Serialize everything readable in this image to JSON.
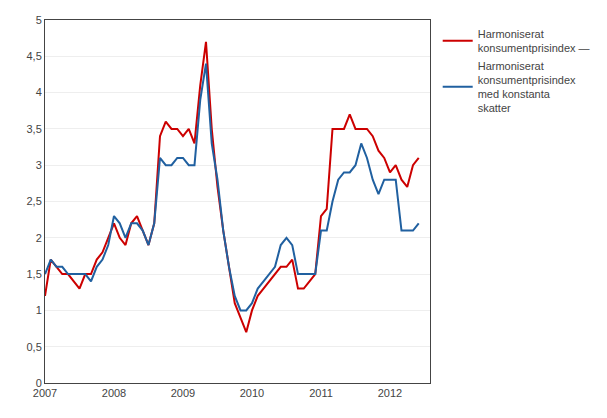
{
  "chart_data": {
    "type": "line",
    "x": [
      2007,
      2007.0833333333333,
      2007.1666666666667,
      2007.25,
      2007.3333333333333,
      2007.4166666666667,
      2007.5,
      2007.5833333333333,
      2007.6666666666667,
      2007.75,
      2007.8333333333333,
      2007.9166666666667,
      2008,
      2008.0833333333333,
      2008.1666666666667,
      2008.25,
      2008.3333333333333,
      2008.4166666666667,
      2008.5,
      2008.5833333333333,
      2008.6666666666667,
      2008.75,
      2008.8333333333333,
      2008.9166666666667,
      2009,
      2009.0833333333333,
      2009.1666666666667,
      2009.25,
      2009.3333333333333,
      2009.4166666666667,
      2009.5,
      2009.5833333333333,
      2009.6666666666667,
      2009.75,
      2009.8333333333333,
      2009.9166666666667,
      2010,
      2010.0833333333333,
      2010.1666666666667,
      2010.25,
      2010.3333333333333,
      2010.4166666666667,
      2010.5,
      2010.5833333333333,
      2010.6666666666667,
      2010.75,
      2010.8333333333333,
      2010.9166666666667,
      2011,
      2011.0833333333333,
      2011.1666666666667,
      2011.25,
      2011.3333333333333,
      2011.4166666666667,
      2011.5,
      2011.5833333333333,
      2011.6666666666667,
      2011.75,
      2011.8333333333333,
      2011.9166666666667,
      2012,
      2012.0833333333333,
      2012.1666666666667,
      2012.25,
      2012.3333333333333,
      2012.4166666666667
    ],
    "series": [
      {
        "name": "Harmoniserat\nkonsumentprisindex —",
        "color": "#cc0000",
        "values": [
          1.2,
          1.7,
          1.6,
          1.5,
          1.5,
          1.4,
          1.3,
          1.5,
          1.5,
          1.7,
          1.8,
          2.0,
          2.2,
          2.0,
          1.9,
          2.2,
          2.3,
          2.1,
          1.9,
          2.2,
          3.4,
          3.6,
          3.5,
          3.5,
          3.4,
          3.5,
          3.3,
          4.1,
          4.7,
          3.5,
          2.7,
          2.1,
          1.6,
          1.1,
          0.9,
          0.7,
          1.0,
          1.2,
          1.3,
          1.4,
          1.5,
          1.6,
          1.6,
          1.7,
          1.3,
          1.3,
          1.4,
          1.5,
          2.3,
          2.4,
          3.5,
          3.5,
          3.5,
          3.7,
          3.5,
          3.5,
          3.5,
          3.4,
          3.2,
          3.1,
          2.9,
          3.0,
          2.8,
          2.7,
          3.0,
          3.1
        ]
      },
      {
        "name": "Harmoniserat\nkonsumentprisindex\nmed konstanta\nskatter",
        "color": "#2060a0",
        "values": [
          1.5,
          1.7,
          1.6,
          1.6,
          1.5,
          1.5,
          1.5,
          1.5,
          1.4,
          1.6,
          1.7,
          1.9,
          2.3,
          2.2,
          2.0,
          2.2,
          2.2,
          2.1,
          1.9,
          2.2,
          3.1,
          3.0,
          3.0,
          3.1,
          3.1,
          3.0,
          3.0,
          3.9,
          4.4,
          3.3,
          2.8,
          2.1,
          1.6,
          1.2,
          1.0,
          1.0,
          1.1,
          1.3,
          1.4,
          1.5,
          1.6,
          1.9,
          2.0,
          1.9,
          1.5,
          1.5,
          1.5,
          1.5,
          2.1,
          2.1,
          2.5,
          2.8,
          2.9,
          2.9,
          3.0,
          3.3,
          3.1,
          2.8,
          2.6,
          2.8,
          2.8,
          2.8,
          2.1,
          2.1,
          2.1,
          2.2
        ]
      }
    ],
    "xlim": [
      2007,
      2012.58
    ],
    "xticks": [
      2007,
      2008,
      2009,
      2010,
      2011,
      2012
    ],
    "ylim": [
      0,
      5
    ],
    "yticks": [
      0,
      {
        "value": 0.5,
        "label": "0,5"
      },
      1,
      {
        "value": 1.5,
        "label": "1,5"
      },
      2,
      {
        "value": 2.5,
        "label": "2,5"
      },
      3,
      {
        "value": 3.5,
        "label": "3,5"
      },
      4,
      {
        "value": 4.5,
        "label": "4,5"
      },
      5
    ],
    "grid": "y",
    "legend": "upper right"
  }
}
